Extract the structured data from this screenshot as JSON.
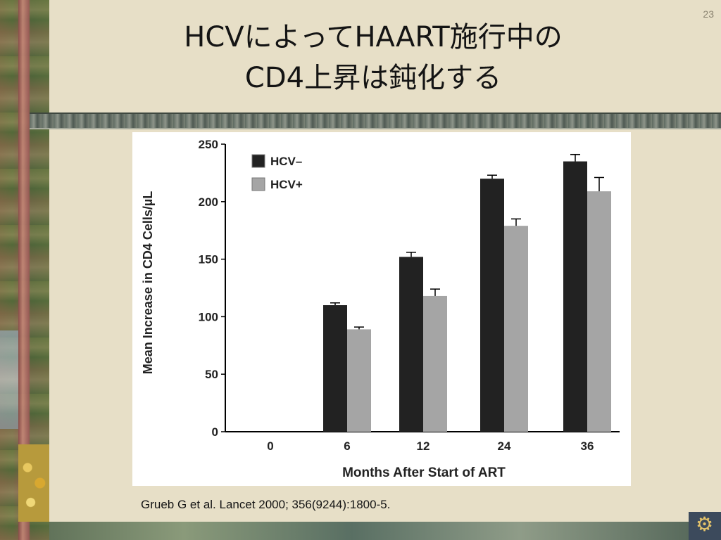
{
  "page_number": "23",
  "title": {
    "line1": "HCVによってHAART施行中の",
    "line2": "CD4上昇は鈍化する"
  },
  "citation": "Grueb G et al. Lancet 2000; 356(9244):1800-5.",
  "chart_data": {
    "type": "bar",
    "categories": [
      "0",
      "6",
      "12",
      "24",
      "36"
    ],
    "series": [
      {
        "name": "HCV–",
        "color": "#222222",
        "values": [
          0,
          110,
          152,
          220,
          235
        ],
        "error": [
          0,
          2,
          4,
          3,
          6
        ]
      },
      {
        "name": "HCV+",
        "color": "#a5a5a5",
        "values": [
          0,
          89,
          118,
          179,
          209
        ],
        "error": [
          0,
          2,
          6,
          6,
          12
        ]
      }
    ],
    "xlabel": "Months After Start of ART",
    "ylabel": "Mean Increase in CD4 Cells/µL",
    "ylim": [
      0,
      250
    ],
    "yticks": [
      "0",
      "50",
      "100",
      "150",
      "200",
      "250"
    ],
    "legend_position": "top-left",
    "grid": false
  },
  "icons": {
    "corner": "gear-icon"
  }
}
